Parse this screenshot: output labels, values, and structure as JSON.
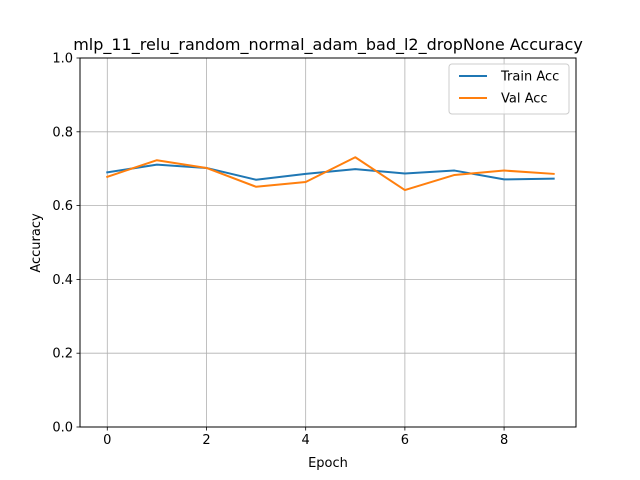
{
  "chart_data": {
    "type": "line",
    "title": "mlp_11_relu_random_normal_adam_bad_l2_dropNone Accuracy",
    "xlabel": "Epoch",
    "ylabel": "Accuracy",
    "x": [
      0,
      1,
      2,
      3,
      4,
      5,
      6,
      7,
      8,
      9
    ],
    "xlim": [
      -0.55,
      9.45
    ],
    "ylim": [
      0,
      1
    ],
    "xticks": [
      0,
      2,
      4,
      6,
      8
    ],
    "xtick_labels": [
      "0",
      "2",
      "4",
      "6",
      "8"
    ],
    "yticks": [
      0,
      0.2,
      0.4,
      0.6,
      0.8,
      1.0
    ],
    "ytick_labels": [
      "0.0",
      "0.2",
      "0.4",
      "0.6",
      "0.8",
      "1.0"
    ],
    "grid": true,
    "legend_position": "top-right",
    "series": [
      {
        "name": "Train Acc",
        "color": "#1f77b4",
        "values": [
          0.69,
          0.711,
          0.702,
          0.67,
          0.686,
          0.699,
          0.687,
          0.695,
          0.671,
          0.673
        ]
      },
      {
        "name": "Val Acc",
        "color": "#ff7f0e",
        "values": [
          0.678,
          0.723,
          0.702,
          0.651,
          0.664,
          0.731,
          0.642,
          0.683,
          0.695,
          0.686
        ]
      }
    ]
  }
}
